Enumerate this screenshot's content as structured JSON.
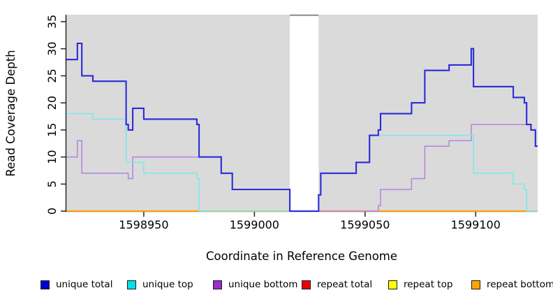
{
  "chart_data": {
    "type": "line",
    "step": true,
    "title": "",
    "xlabel": "Coordinate in Reference Genome",
    "ylabel": "Read Coverage Depth",
    "xlim": [
      1598915,
      1599128
    ],
    "ylim": [
      0,
      35
    ],
    "x_ticks": [
      1598950,
      1599000,
      1599050,
      1599100
    ],
    "y_ticks": [
      0,
      5,
      10,
      15,
      20,
      25,
      30,
      35
    ],
    "grid": false,
    "plot_background": "#dadada",
    "masked_region": {
      "x_start": 1599016,
      "x_end": 1599029,
      "fill": "#ffffff",
      "cap_color": "#8a8a8a"
    },
    "series": [
      {
        "name": "unique total",
        "group": "unique",
        "color": "#2b2bd9",
        "width": 2.1,
        "steps": [
          [
            1598915,
            28
          ],
          [
            1598920,
            31
          ],
          [
            1598922,
            25
          ],
          [
            1598927,
            24
          ],
          [
            1598942,
            16
          ],
          [
            1598943,
            15
          ],
          [
            1598945,
            19
          ],
          [
            1598950,
            17
          ],
          [
            1598974,
            16
          ],
          [
            1598975,
            10
          ],
          [
            1598985,
            7
          ],
          [
            1598990,
            4
          ],
          [
            1599016,
            0
          ],
          [
            1599029,
            3
          ],
          [
            1599030,
            7
          ],
          [
            1599046,
            9
          ],
          [
            1599052,
            14
          ],
          [
            1599056,
            15
          ],
          [
            1599057,
            18
          ],
          [
            1599071,
            20
          ],
          [
            1599077,
            26
          ],
          [
            1599088,
            27
          ],
          [
            1599098,
            30
          ],
          [
            1599099,
            23
          ],
          [
            1599117,
            21
          ],
          [
            1599122,
            20
          ],
          [
            1599123,
            16
          ],
          [
            1599125,
            15
          ],
          [
            1599127,
            12
          ],
          [
            1599128,
            12
          ]
        ]
      },
      {
        "name": "unique top",
        "group": "unique",
        "color": "#79e9e9",
        "width": 1.5,
        "steps": [
          [
            1598915,
            18
          ],
          [
            1598927,
            17
          ],
          [
            1598942,
            9
          ],
          [
            1598950,
            7
          ],
          [
            1598974,
            6
          ],
          [
            1598975,
            0
          ],
          [
            1599029,
            3
          ],
          [
            1599030,
            7
          ],
          [
            1599046,
            9
          ],
          [
            1599052,
            14
          ],
          [
            1599099,
            7
          ],
          [
            1599117,
            5
          ],
          [
            1599122,
            4
          ],
          [
            1599123,
            0
          ],
          [
            1599128,
            0
          ]
        ]
      },
      {
        "name": "unique bottom",
        "group": "unique",
        "color": "#b283de",
        "width": 1.5,
        "steps": [
          [
            1598915,
            10
          ],
          [
            1598920,
            13
          ],
          [
            1598922,
            7
          ],
          [
            1598943,
            6
          ],
          [
            1598945,
            10
          ],
          [
            1598985,
            7
          ],
          [
            1598990,
            4
          ],
          [
            1599016,
            0
          ],
          [
            1599056,
            1
          ],
          [
            1599057,
            4
          ],
          [
            1599071,
            6
          ],
          [
            1599077,
            12
          ],
          [
            1599088,
            13
          ],
          [
            1599098,
            16
          ],
          [
            1599125,
            15
          ],
          [
            1599127,
            12
          ],
          [
            1599128,
            12
          ]
        ]
      },
      {
        "name": "repeat total",
        "group": "repeat",
        "color": "#e00000",
        "width": 1.5,
        "steps": [
          [
            1598915,
            0
          ],
          [
            1599128,
            0
          ]
        ]
      },
      {
        "name": "repeat top",
        "group": "repeat",
        "color": "#ffff00",
        "width": 1.5,
        "steps": [
          [
            1598915,
            0
          ],
          [
            1599128,
            0
          ]
        ]
      },
      {
        "name": "repeat bottom",
        "group": "repeat",
        "color": "#ff9e00",
        "width": 1.9,
        "steps": [
          [
            1598915,
            0
          ],
          [
            1599128,
            0
          ]
        ]
      }
    ],
    "legend": {
      "position": "bottom",
      "entries": [
        {
          "label": "unique total",
          "color": "#0000d6"
        },
        {
          "label": "unique top",
          "color": "#00e2ea"
        },
        {
          "label": "unique bottom",
          "color": "#9a2fcc"
        },
        {
          "label": "repeat total",
          "color": "#ee0000"
        },
        {
          "label": "repeat top",
          "color": "#ffff00"
        },
        {
          "label": "repeat bottom",
          "color": "#ffa500"
        }
      ]
    }
  }
}
